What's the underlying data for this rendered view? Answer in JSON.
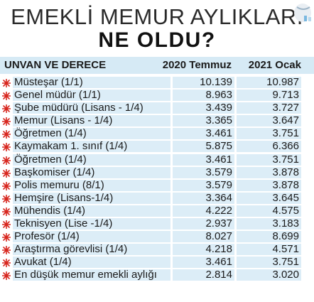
{
  "title_line1": "EMEKLİ MEMUR AYLIKLARI",
  "title_line2": "NE OLDU?",
  "header": {
    "title": "UNVAN VE DERECE",
    "col1": "2020 Temmuz",
    "col2": "2021 Ocak"
  },
  "colors": {
    "accent_red": "#d7261e",
    "row_fill": "#dcedf7",
    "header_fill": "#d6eaf5"
  },
  "rows": [
    {
      "title": "Müsteşar (1/1)",
      "v2020": "10.139",
      "v2021": "10.987"
    },
    {
      "title": "Genel müdür (1/1)",
      "v2020": "8.963",
      "v2021": "9.713"
    },
    {
      "title": "Şube müdürü (Lisans - 1/4)",
      "v2020": "3.439",
      "v2021": "3.727"
    },
    {
      "title": "Memur (Lisans - 1/4)",
      "v2020": "3.365",
      "v2021": "3.647"
    },
    {
      "title": "Öğretmen (1/4)",
      "v2020": "3.461",
      "v2021": "3.751"
    },
    {
      "title": "Kaymakam 1. sınıf (1/4)",
      "v2020": "5.875",
      "v2021": "6.366"
    },
    {
      "title": "Öğretmen (1/4)",
      "v2020": "3.461",
      "v2021": "3.751"
    },
    {
      "title": "Başkomiser (1/4)",
      "v2020": "3.579",
      "v2021": "3.878"
    },
    {
      "title": "Polis memuru (8/1)",
      "v2020": "3.579",
      "v2021": "3.878"
    },
    {
      "title": "Hemşire (Lisans-1/4)",
      "v2020": "3.364",
      "v2021": "3.645"
    },
    {
      "title": "Mühendis (1/4)",
      "v2020": "4.222",
      "v2021": "4.575"
    },
    {
      "title": "Teknisyen (Lise -1/4)",
      "v2020": "2.937",
      "v2021": "3.183"
    },
    {
      "title": "Profesör (1/4)",
      "v2020": "8.027",
      "v2021": "8.699"
    },
    {
      "title": "Araştırma görevlisi (1/4)",
      "v2020": "4.218",
      "v2021": "4.571"
    },
    {
      "title": "Avukat (1/4)",
      "v2020": "3.461",
      "v2021": "3.751"
    },
    {
      "title": "En düşük memur emekli aylığı",
      "v2020": "2.814",
      "v2021": "3.020"
    }
  ]
}
